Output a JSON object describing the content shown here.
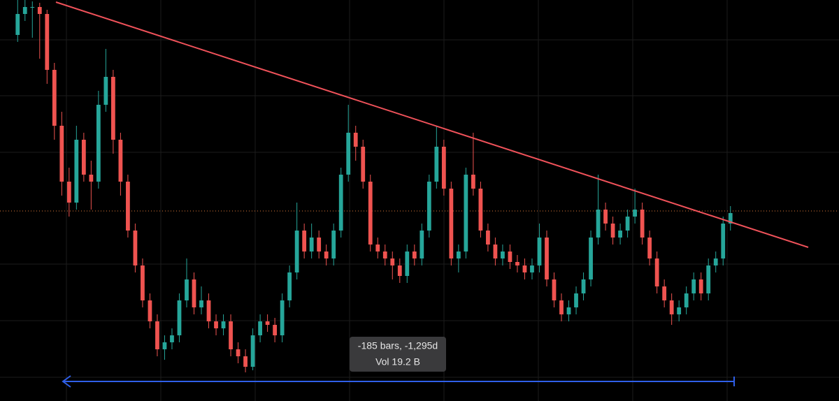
{
  "chart_data": {
    "type": "candlestick",
    "up_color": "#26a69a",
    "down_color": "#ef5350",
    "ylim": [
      0,
      57.4
    ],
    "open": [
      52.4,
      55.4,
      56.4,
      56.4,
      55.4,
      47.4,
      39.4,
      31.4,
      28.4,
      37.4,
      32.4,
      31.4,
      42.4,
      46.4,
      37.4,
      31.4,
      24.4,
      19.4,
      14.4,
      11.4,
      7.4,
      8.4,
      9.4,
      14.4,
      17.4,
      13.4,
      14.4,
      11.4,
      10.4,
      11.4,
      7.4,
      6.4,
      4.9,
      9.4,
      11.4,
      10.9,
      9.4,
      14.4,
      18.4,
      24.4,
      21.4,
      23.4,
      21.4,
      20.4,
      24.4,
      32.4,
      38.4,
      36.4,
      31.4,
      22.4,
      21.4,
      20.4,
      19.4,
      17.9,
      21.4,
      20.4,
      24.4,
      31.4,
      36.4,
      30.4,
      20.4,
      21.4,
      32.4,
      30.4,
      24.4,
      22.4,
      20.4,
      21.4,
      19.9,
      19.4,
      18.4,
      19.4,
      23.4,
      17.4,
      14.4,
      12.4,
      13.4,
      15.4,
      17.4,
      23.4,
      27.4,
      25.4,
      23.4,
      24.4,
      26.4,
      27.4,
      23.4,
      20.4,
      16.4,
      14.4,
      12.4,
      13.4,
      15.4,
      17.4,
      15.4,
      19.4,
      20.4,
      25.4
    ],
    "high": [
      57.4,
      57.4,
      57.2,
      57.0,
      56.0,
      48.4,
      41.4,
      33.4,
      39.4,
      38.4,
      34.4,
      44.4,
      50.4,
      47.4,
      38.4,
      32.4,
      25.4,
      20.4,
      15.4,
      12.4,
      9.4,
      10.4,
      15.4,
      20.4,
      18.4,
      16.4,
      15.4,
      12.4,
      12.4,
      12.4,
      8.4,
      7.4,
      10.4,
      12.4,
      12.4,
      11.9,
      15.4,
      19.4,
      28.4,
      25.4,
      25.4,
      24.4,
      22.4,
      25.4,
      33.4,
      42.4,
      39.4,
      37.4,
      32.4,
      23.4,
      22.4,
      21.4,
      20.4,
      22.4,
      22.4,
      25.4,
      32.4,
      39.4,
      37.4,
      31.4,
      22.4,
      33.4,
      38.4,
      31.4,
      25.4,
      23.4,
      22.4,
      22.4,
      20.9,
      20.4,
      20.4,
      25.4,
      24.4,
      18.4,
      15.4,
      14.4,
      16.4,
      18.4,
      24.4,
      32.4,
      28.4,
      26.4,
      25.4,
      27.4,
      30.4,
      28.4,
      24.4,
      21.4,
      17.4,
      15.4,
      14.4,
      16.4,
      18.4,
      18.4,
      20.4,
      21.4,
      26.4,
      27.9
    ],
    "low": [
      51.4,
      54.4,
      52.0,
      49.0,
      45.4,
      37.4,
      29.4,
      26.4,
      27.4,
      31.4,
      27.4,
      30.4,
      41.4,
      35.4,
      29.4,
      23.4,
      18.4,
      13.4,
      10.4,
      6.4,
      5.9,
      7.4,
      8.4,
      13.4,
      12.4,
      12.4,
      10.4,
      9.4,
      9.4,
      6.4,
      5.4,
      4.1,
      4.4,
      8.4,
      9.9,
      8.4,
      8.4,
      13.4,
      17.4,
      20.4,
      20.4,
      20.4,
      19.4,
      19.4,
      23.4,
      31.4,
      34.4,
      30.4,
      21.4,
      20.4,
      19.4,
      17.4,
      16.9,
      16.9,
      19.4,
      19.4,
      23.4,
      30.4,
      29.4,
      19.4,
      18.4,
      20.4,
      29.4,
      23.4,
      21.4,
      19.4,
      19.4,
      18.9,
      18.4,
      17.4,
      17.4,
      18.4,
      16.4,
      13.4,
      11.4,
      11.4,
      12.4,
      14.4,
      16.4,
      22.4,
      24.4,
      22.4,
      22.4,
      23.4,
      25.4,
      22.4,
      19.4,
      15.4,
      13.4,
      10.9,
      11.4,
      12.4,
      14.4,
      14.4,
      14.4,
      18.4,
      19.4,
      24.4
    ],
    "close": [
      55.4,
      56.4,
      56.4,
      55.4,
      47.4,
      39.4,
      31.4,
      28.4,
      37.4,
      32.4,
      31.4,
      42.4,
      46.4,
      37.4,
      31.4,
      24.4,
      19.4,
      14.4,
      11.4,
      7.4,
      8.4,
      9.4,
      14.4,
      17.4,
      13.4,
      14.4,
      11.4,
      10.4,
      11.4,
      7.4,
      6.4,
      4.9,
      9.4,
      11.4,
      10.9,
      9.4,
      14.4,
      18.4,
      24.4,
      21.4,
      23.4,
      21.4,
      20.4,
      24.4,
      32.4,
      38.4,
      36.4,
      31.4,
      22.4,
      21.4,
      20.4,
      19.4,
      17.9,
      21.4,
      20.4,
      24.4,
      31.4,
      36.4,
      30.4,
      20.4,
      21.4,
      32.4,
      30.4,
      24.4,
      22.4,
      20.4,
      21.4,
      19.9,
      19.4,
      18.4,
      19.4,
      23.4,
      17.4,
      14.4,
      12.4,
      13.4,
      15.4,
      17.4,
      23.4,
      27.4,
      25.4,
      23.4,
      24.4,
      26.4,
      27.4,
      23.4,
      20.4,
      16.4,
      14.4,
      12.4,
      13.4,
      15.4,
      17.4,
      15.4,
      19.4,
      20.4,
      25.4,
      26.9
    ],
    "annotations": [
      "-185 bars, -1,295d",
      "Vol 19.2 B"
    ]
  }
}
